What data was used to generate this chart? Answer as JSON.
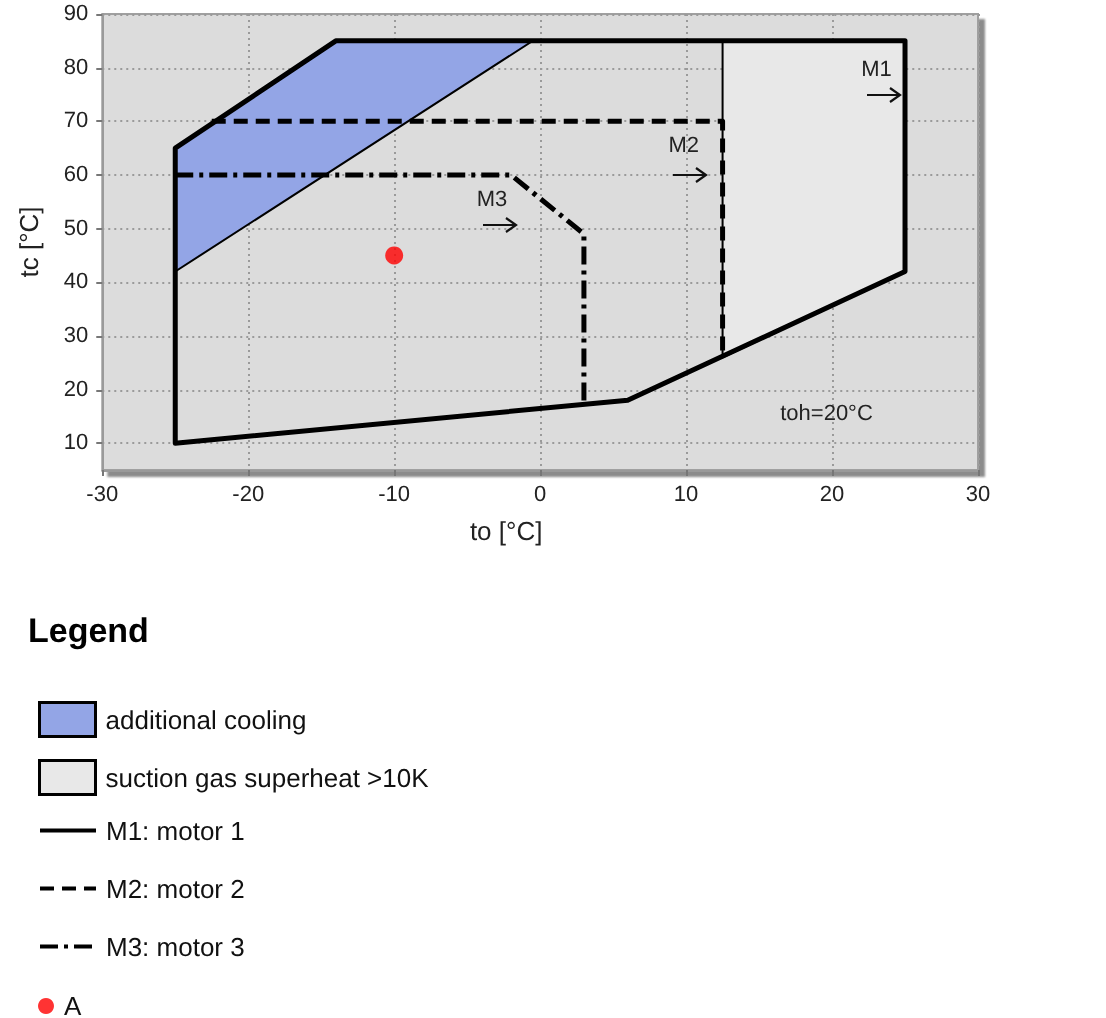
{
  "chart_data": {
    "type": "line",
    "xlabel": "to [°C]",
    "ylabel": "tc [°C]",
    "legend_title": "Legend",
    "series": [
      {
        "type": "area",
        "name": "additional cooling",
        "color": "#93a5e6",
        "x": [
          -25,
          -25,
          -14,
          -0.5
        ],
        "values": [
          42,
          65,
          85,
          85
        ]
      },
      {
        "type": "area",
        "name": "suction gas superheat >10K",
        "color": "#e8e8e8",
        "x": [
          12.5,
          25,
          25,
          12.5
        ],
        "values": [
          85,
          85,
          42,
          26
        ]
      },
      {
        "name": "M1: motor 1",
        "color": "#000000",
        "line_style": "solid",
        "x": [
          -25,
          -25,
          -14,
          25,
          25,
          6,
          -25,
          -25
        ],
        "values": [
          10,
          65,
          85,
          85,
          42,
          18,
          10,
          65
        ]
      },
      {
        "name": "M2: motor 2",
        "color": "#000000",
        "line_style": "dashed",
        "x": [
          -22.5,
          12.5,
          12.5
        ],
        "values": [
          70,
          70,
          26
        ]
      },
      {
        "name": "M3: motor 3",
        "color": "#000000",
        "line_style": "dashdot",
        "x": [
          -25,
          -2,
          3,
          3
        ],
        "values": [
          60,
          60,
          49,
          17
        ]
      },
      {
        "type": "scatter",
        "name": "A",
        "color": "#ff0000",
        "marker": "circle",
        "x": [
          -10
        ],
        "values": [
          45
        ]
      }
    ],
    "annotations": [
      "M1",
      "M2",
      "M3",
      "toh=20°C"
    ],
    "xlim": [
      -30,
      30
    ],
    "xticks": [
      -30,
      -20,
      -10,
      0,
      10,
      20,
      30
    ],
    "ylim": [
      5,
      90
    ],
    "yticks": [
      10,
      20,
      30,
      40,
      50,
      60,
      70,
      80,
      90
    ],
    "grid": true,
    "legend": "bottom"
  }
}
